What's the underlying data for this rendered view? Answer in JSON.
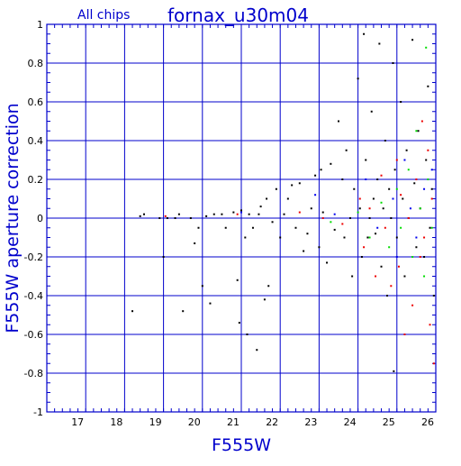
{
  "header": {
    "subtitle": "All chips",
    "title": "fornax_u30m04"
  },
  "chart_data": {
    "type": "scatter",
    "title": "fornax_u30m04",
    "subtitle": "All chips",
    "xlabel": "F555W",
    "ylabel": "F555W aperture correction",
    "xlim": [
      16,
      26
    ],
    "ylim": [
      -1,
      1
    ],
    "xticks": [
      17,
      18,
      19,
      20,
      21,
      22,
      23,
      24,
      25,
      26
    ],
    "yticks": [
      -1,
      -0.8,
      -0.6,
      -0.4,
      -0.2,
      0,
      0.2,
      0.4,
      0.6,
      0.8,
      1
    ],
    "xtick_labels": [
      "17",
      "18",
      "19",
      "20",
      "21",
      "22",
      "23",
      "24",
      "25",
      "26"
    ],
    "ytick_labels": [
      "-1",
      "-0.8",
      "-0.6",
      "-0.4",
      "-0.2",
      "0",
      "0.2",
      "0.4",
      "0.6",
      "0.8",
      "1"
    ],
    "grid": true,
    "colors": {
      "frame": "#0000cc",
      "black": "#000000",
      "red": "#ee0000",
      "green": "#00dd00",
      "blue": "#0000ee"
    },
    "series": [
      {
        "color": "#000000",
        "points": [
          [
            18.2,
            -0.48
          ],
          [
            18.4,
            0.01
          ],
          [
            18.5,
            0.02
          ],
          [
            18.9,
            0.0
          ],
          [
            19.0,
            -0.2
          ],
          [
            19.1,
            0.0
          ],
          [
            19.3,
            0.0
          ],
          [
            19.4,
            0.02
          ],
          [
            19.5,
            -0.48
          ],
          [
            19.7,
            0.0
          ],
          [
            19.8,
            -0.13
          ],
          [
            19.9,
            -0.05
          ],
          [
            20.0,
            -0.35
          ],
          [
            20.1,
            0.01
          ],
          [
            20.2,
            -0.44
          ],
          [
            20.3,
            0.02
          ],
          [
            20.5,
            0.02
          ],
          [
            20.6,
            -0.05
          ],
          [
            20.8,
            0.03
          ],
          [
            20.9,
            -0.32
          ],
          [
            20.95,
            -0.54
          ],
          [
            21.0,
            0.04
          ],
          [
            21.1,
            -0.1
          ],
          [
            21.15,
            -0.6
          ],
          [
            21.2,
            0.02
          ],
          [
            21.3,
            -0.05
          ],
          [
            21.4,
            -0.68
          ],
          [
            21.45,
            0.02
          ],
          [
            21.5,
            0.06
          ],
          [
            21.6,
            -0.42
          ],
          [
            21.65,
            0.1
          ],
          [
            21.7,
            -0.35
          ],
          [
            21.8,
            -0.02
          ],
          [
            21.9,
            0.15
          ],
          [
            22.0,
            -0.1
          ],
          [
            22.1,
            0.02
          ],
          [
            22.2,
            0.1
          ],
          [
            22.3,
            0.17
          ],
          [
            22.4,
            -0.05
          ],
          [
            22.5,
            0.18
          ],
          [
            22.6,
            -0.17
          ],
          [
            22.7,
            -0.08
          ],
          [
            22.8,
            0.05
          ],
          [
            22.9,
            0.22
          ],
          [
            23.0,
            -0.15
          ],
          [
            23.05,
            0.25
          ],
          [
            23.1,
            0.03
          ],
          [
            23.2,
            -0.23
          ],
          [
            23.3,
            0.28
          ],
          [
            23.4,
            -0.06
          ],
          [
            23.5,
            0.5
          ],
          [
            23.6,
            0.2
          ],
          [
            23.65,
            -0.1
          ],
          [
            23.7,
            0.35
          ],
          [
            23.8,
            0.0
          ],
          [
            23.85,
            -0.3
          ],
          [
            23.9,
            0.15
          ],
          [
            24.0,
            0.72
          ],
          [
            24.05,
            0.05
          ],
          [
            24.1,
            -0.2
          ],
          [
            24.15,
            0.95
          ],
          [
            24.2,
            0.3
          ],
          [
            24.25,
            -0.1
          ],
          [
            24.3,
            0.0
          ],
          [
            24.35,
            0.55
          ],
          [
            24.4,
            0.1
          ],
          [
            24.45,
            -0.08
          ],
          [
            24.5,
            0.2
          ],
          [
            24.55,
            0.9
          ],
          [
            24.6,
            -0.25
          ],
          [
            24.65,
            0.05
          ],
          [
            24.7,
            0.4
          ],
          [
            24.75,
            -0.4
          ],
          [
            24.8,
            0.15
          ],
          [
            24.85,
            0.0
          ],
          [
            24.9,
            0.8
          ],
          [
            24.92,
            -0.79
          ],
          [
            24.95,
            0.25
          ],
          [
            25.0,
            -0.1
          ],
          [
            25.1,
            0.6
          ],
          [
            25.15,
            0.1
          ],
          [
            25.2,
            -0.3
          ],
          [
            25.25,
            0.35
          ],
          [
            25.3,
            0.0
          ],
          [
            25.4,
            0.92
          ],
          [
            25.45,
            0.18
          ],
          [
            25.5,
            -0.15
          ],
          [
            25.55,
            0.45
          ],
          [
            25.6,
            0.05
          ],
          [
            25.7,
            -0.2
          ],
          [
            25.75,
            0.3
          ],
          [
            25.8,
            0.68
          ],
          [
            25.85,
            -0.05
          ],
          [
            25.9,
            0.15
          ],
          [
            25.95,
            -0.4
          ]
        ]
      },
      {
        "color": "#ee0000",
        "points": [
          [
            19.05,
            0.01
          ],
          [
            20.9,
            0.02
          ],
          [
            22.5,
            0.03
          ],
          [
            23.1,
            0.0
          ],
          [
            23.6,
            -0.03
          ],
          [
            24.05,
            0.1
          ],
          [
            24.15,
            -0.15
          ],
          [
            24.3,
            0.05
          ],
          [
            24.45,
            -0.3
          ],
          [
            24.6,
            0.22
          ],
          [
            24.7,
            -0.05
          ],
          [
            24.85,
            -0.35
          ],
          [
            25.0,
            0.3
          ],
          [
            25.05,
            -0.25
          ],
          [
            25.1,
            0.12
          ],
          [
            25.2,
            -0.6
          ],
          [
            25.3,
            0.0
          ],
          [
            25.4,
            -0.45
          ],
          [
            25.5,
            0.2
          ],
          [
            25.6,
            -0.2
          ],
          [
            25.65,
            0.5
          ],
          [
            25.7,
            -0.1
          ],
          [
            25.8,
            0.35
          ],
          [
            25.85,
            -0.55
          ],
          [
            25.9,
            0.1
          ],
          [
            25.95,
            -0.75
          ]
        ]
      },
      {
        "color": "#00dd00",
        "points": [
          [
            23.3,
            -0.02
          ],
          [
            24.0,
            0.03
          ],
          [
            24.3,
            -0.1
          ],
          [
            24.6,
            0.08
          ],
          [
            24.8,
            -0.15
          ],
          [
            25.0,
            0.15
          ],
          [
            25.1,
            -0.05
          ],
          [
            25.3,
            0.25
          ],
          [
            25.4,
            -0.2
          ],
          [
            25.5,
            0.45
          ],
          [
            25.6,
            0.05
          ],
          [
            25.7,
            -0.3
          ],
          [
            25.75,
            0.88
          ],
          [
            25.8,
            0.2
          ],
          [
            25.9,
            -0.05
          ]
        ]
      },
      {
        "color": "#0000ee",
        "points": [
          [
            21.0,
            0.03
          ],
          [
            22.9,
            0.12
          ],
          [
            23.4,
            0.02
          ],
          [
            24.2,
            0.2
          ],
          [
            24.5,
            -0.05
          ],
          [
            24.9,
            0.1
          ],
          [
            25.0,
            -0.2
          ],
          [
            25.2,
            0.3
          ],
          [
            25.35,
            0.05
          ],
          [
            25.5,
            -0.1
          ],
          [
            25.7,
            0.15
          ],
          [
            25.9,
            0.25
          ]
        ]
      }
    ]
  }
}
